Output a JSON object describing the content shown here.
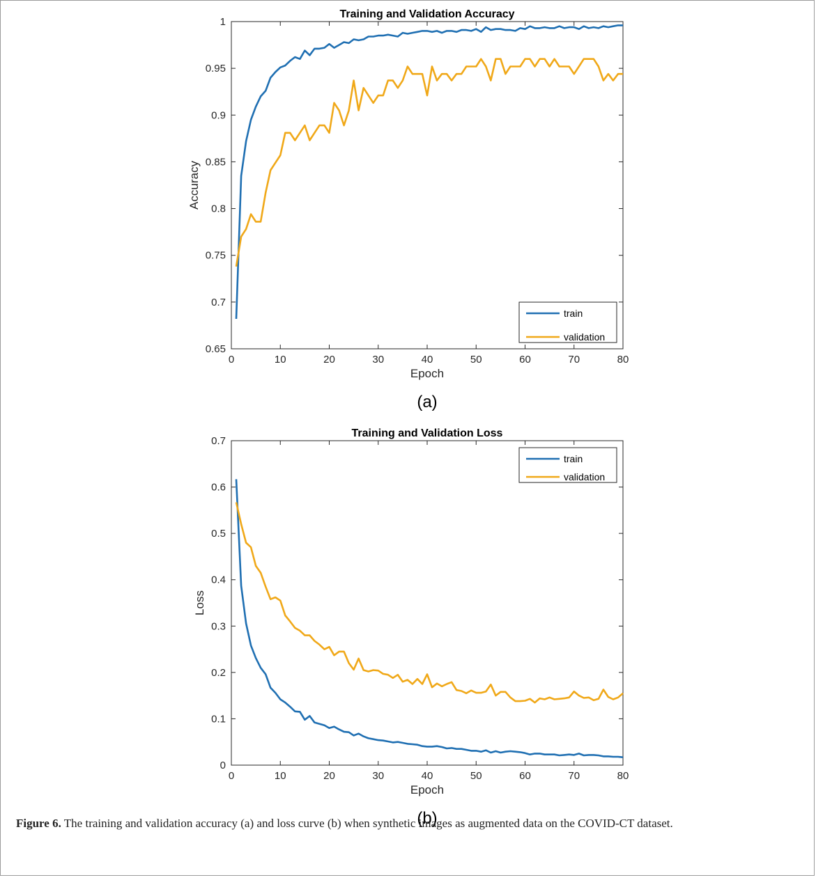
{
  "caption": {
    "label": "Figure 6.",
    "text": " The training and validation accuracy (a) and loss curve (b) when synthetic images as augmented data on the COVID-CT dataset."
  },
  "colors": {
    "train": "#1f6fb2",
    "validation": "#f0a818"
  },
  "chart_data": [
    {
      "type": "line",
      "panel_label": "(a)",
      "title": "Training and Validation Accuracy",
      "xlabel": "Epoch",
      "ylabel": "Accuracy",
      "xlim": [
        0,
        80
      ],
      "ylim": [
        0.65,
        1
      ],
      "xticks": [
        0,
        10,
        20,
        30,
        40,
        50,
        60,
        70,
        80
      ],
      "yticks": [
        0.65,
        0.7,
        0.75,
        0.8,
        0.85,
        0.9,
        0.95,
        1
      ],
      "ytick_labels": [
        "0.65",
        "0.7",
        "0.75",
        "0.8",
        "0.85",
        "0.9",
        "0.95",
        "1"
      ],
      "legend_position": "bottom-right",
      "grid": false,
      "series": [
        {
          "name": "train",
          "x": [
            1,
            2,
            3,
            4,
            5,
            6,
            7,
            8,
            9,
            10,
            11,
            12,
            13,
            14,
            15,
            16,
            17,
            18,
            19,
            20,
            21,
            22,
            23,
            24,
            25,
            26,
            27,
            28,
            29,
            30,
            31,
            32,
            33,
            34,
            35,
            36,
            37,
            38,
            39,
            40,
            41,
            42,
            43,
            44,
            45,
            46,
            47,
            48,
            49,
            50,
            51,
            52,
            53,
            54,
            55,
            56,
            57,
            58,
            59,
            60,
            61,
            62,
            63,
            64,
            65,
            66,
            67,
            68,
            69,
            70,
            71,
            72,
            73,
            74,
            75,
            76,
            77,
            78,
            79,
            80
          ],
          "values": [
            0.682,
            0.835,
            0.872,
            0.895,
            0.909,
            0.92,
            0.926,
            0.94,
            0.946,
            0.951,
            0.953,
            0.958,
            0.962,
            0.96,
            0.969,
            0.964,
            0.971,
            0.971,
            0.972,
            0.976,
            0.972,
            0.975,
            0.978,
            0.977,
            0.981,
            0.98,
            0.981,
            0.984,
            0.984,
            0.985,
            0.985,
            0.986,
            0.985,
            0.984,
            0.988,
            0.987,
            0.988,
            0.989,
            0.99,
            0.99,
            0.989,
            0.99,
            0.988,
            0.99,
            0.99,
            0.989,
            0.991,
            0.991,
            0.99,
            0.992,
            0.989,
            0.994,
            0.991,
            0.992,
            0.992,
            0.991,
            0.991,
            0.99,
            0.993,
            0.992,
            0.995,
            0.993,
            0.993,
            0.994,
            0.993,
            0.993,
            0.995,
            0.993,
            0.994,
            0.994,
            0.992,
            0.995,
            0.993,
            0.994,
            0.993,
            0.995,
            0.994,
            0.995,
            0.996,
            0.996
          ]
        },
        {
          "name": "validation",
          "x": [
            1,
            2,
            3,
            4,
            5,
            6,
            7,
            8,
            9,
            10,
            11,
            12,
            13,
            14,
            15,
            16,
            17,
            18,
            19,
            20,
            21,
            22,
            23,
            24,
            25,
            26,
            27,
            28,
            29,
            30,
            31,
            32,
            33,
            34,
            35,
            36,
            37,
            38,
            39,
            40,
            41,
            42,
            43,
            44,
            45,
            46,
            47,
            48,
            49,
            50,
            51,
            52,
            53,
            54,
            55,
            56,
            57,
            58,
            59,
            60,
            61,
            62,
            63,
            64,
            65,
            66,
            67,
            68,
            69,
            70,
            71,
            72,
            73,
            74,
            75,
            76,
            77,
            78,
            79,
            80
          ],
          "values": [
            0.738,
            0.77,
            0.778,
            0.794,
            0.786,
            0.786,
            0.817,
            0.841,
            0.849,
            0.857,
            0.881,
            0.881,
            0.873,
            0.881,
            0.889,
            0.873,
            0.881,
            0.889,
            0.889,
            0.881,
            0.913,
            0.905,
            0.889,
            0.905,
            0.937,
            0.905,
            0.929,
            0.921,
            0.913,
            0.921,
            0.921,
            0.937,
            0.937,
            0.929,
            0.937,
            0.952,
            0.944,
            0.944,
            0.944,
            0.921,
            0.952,
            0.937,
            0.944,
            0.944,
            0.937,
            0.944,
            0.944,
            0.952,
            0.952,
            0.952,
            0.96,
            0.952,
            0.937,
            0.96,
            0.96,
            0.944,
            0.952,
            0.952,
            0.952,
            0.96,
            0.96,
            0.952,
            0.96,
            0.96,
            0.952,
            0.96,
            0.952,
            0.952,
            0.952,
            0.944,
            0.952,
            0.96,
            0.96,
            0.96,
            0.952,
            0.937,
            0.944,
            0.937,
            0.944,
            0.944
          ]
        }
      ]
    },
    {
      "type": "line",
      "panel_label": "(b)",
      "title": "Training and Validation Loss",
      "xlabel": "Epoch",
      "ylabel": "Loss",
      "xlim": [
        0,
        80
      ],
      "ylim": [
        0,
        0.7
      ],
      "xticks": [
        0,
        10,
        20,
        30,
        40,
        50,
        60,
        70,
        80
      ],
      "yticks": [
        0,
        0.1,
        0.2,
        0.3,
        0.4,
        0.5,
        0.6,
        0.7
      ],
      "ytick_labels": [
        "0",
        "0.1",
        "0.2",
        "0.3",
        "0.4",
        "0.5",
        "0.6",
        "0.7"
      ],
      "legend_position": "top-right",
      "grid": false,
      "series": [
        {
          "name": "train",
          "x": [
            1,
            2,
            3,
            4,
            5,
            6,
            7,
            8,
            9,
            10,
            11,
            12,
            13,
            14,
            15,
            16,
            17,
            18,
            19,
            20,
            21,
            22,
            23,
            24,
            25,
            26,
            27,
            28,
            29,
            30,
            31,
            32,
            33,
            34,
            35,
            36,
            37,
            38,
            39,
            40,
            41,
            42,
            43,
            44,
            45,
            46,
            47,
            48,
            49,
            50,
            51,
            52,
            53,
            54,
            55,
            56,
            57,
            58,
            59,
            60,
            61,
            62,
            63,
            64,
            65,
            66,
            67,
            68,
            69,
            70,
            71,
            72,
            73,
            74,
            75,
            76,
            77,
            78,
            79,
            80
          ],
          "values": [
            0.617,
            0.387,
            0.306,
            0.258,
            0.231,
            0.21,
            0.196,
            0.167,
            0.156,
            0.142,
            0.135,
            0.126,
            0.116,
            0.115,
            0.098,
            0.106,
            0.092,
            0.089,
            0.086,
            0.08,
            0.083,
            0.077,
            0.072,
            0.071,
            0.064,
            0.068,
            0.062,
            0.058,
            0.056,
            0.054,
            0.053,
            0.051,
            0.049,
            0.05,
            0.048,
            0.046,
            0.045,
            0.044,
            0.041,
            0.04,
            0.04,
            0.041,
            0.039,
            0.036,
            0.037,
            0.035,
            0.035,
            0.033,
            0.031,
            0.031,
            0.029,
            0.032,
            0.027,
            0.03,
            0.027,
            0.029,
            0.03,
            0.029,
            0.028,
            0.026,
            0.023,
            0.025,
            0.025,
            0.023,
            0.023,
            0.023,
            0.021,
            0.022,
            0.023,
            0.022,
            0.025,
            0.021,
            0.022,
            0.022,
            0.021,
            0.019,
            0.019,
            0.018,
            0.018,
            0.017
          ]
        },
        {
          "name": "validation",
          "x": [
            1,
            2,
            3,
            4,
            5,
            6,
            7,
            8,
            9,
            10,
            11,
            12,
            13,
            14,
            15,
            16,
            17,
            18,
            19,
            20,
            21,
            22,
            23,
            24,
            25,
            26,
            27,
            28,
            29,
            30,
            31,
            32,
            33,
            34,
            35,
            36,
            37,
            38,
            39,
            40,
            41,
            42,
            43,
            44,
            45,
            46,
            47,
            48,
            49,
            50,
            51,
            52,
            53,
            54,
            55,
            56,
            57,
            58,
            59,
            60,
            61,
            62,
            63,
            64,
            65,
            66,
            67,
            68,
            69,
            70,
            71,
            72,
            73,
            74,
            75,
            76,
            77,
            78,
            79,
            80
          ],
          "values": [
            0.567,
            0.52,
            0.48,
            0.47,
            0.43,
            0.415,
            0.385,
            0.358,
            0.362,
            0.355,
            0.323,
            0.31,
            0.296,
            0.29,
            0.28,
            0.28,
            0.268,
            0.26,
            0.25,
            0.255,
            0.237,
            0.245,
            0.245,
            0.22,
            0.206,
            0.23,
            0.205,
            0.202,
            0.205,
            0.204,
            0.197,
            0.195,
            0.188,
            0.195,
            0.18,
            0.184,
            0.175,
            0.186,
            0.175,
            0.196,
            0.168,
            0.176,
            0.17,
            0.175,
            0.179,
            0.162,
            0.16,
            0.155,
            0.161,
            0.156,
            0.156,
            0.159,
            0.174,
            0.15,
            0.158,
            0.158,
            0.146,
            0.138,
            0.138,
            0.139,
            0.143,
            0.135,
            0.144,
            0.142,
            0.146,
            0.142,
            0.143,
            0.144,
            0.146,
            0.159,
            0.15,
            0.145,
            0.146,
            0.14,
            0.143,
            0.163,
            0.147,
            0.142,
            0.146,
            0.155
          ]
        }
      ]
    }
  ]
}
